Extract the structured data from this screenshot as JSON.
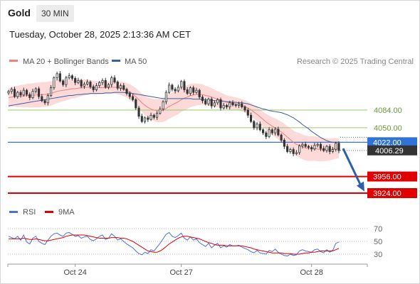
{
  "header": {
    "instrument": "Gold",
    "timeframe": "30 MIN",
    "timestamp": "Tuesday, October 28, 2025 2:13:36 AM CET"
  },
  "legend": {
    "ma20_label": "MA 20 + Bollinger Bands",
    "ma50_label": "MA 50",
    "copyright": "Research © 2025 Trading Central",
    "rsi_label": "RSI",
    "rsi_ma_label": "9MA"
  },
  "colors": {
    "ma20": "#f08080",
    "ma50": "#3a5fa0",
    "band_fill": "#fbd3d3",
    "candle": "#333333",
    "support": "#e00000",
    "current_level": "#2f73d8",
    "resistance_lines": "#9acb6a",
    "arrow": "#2c5fa8",
    "price_tag": "#333333",
    "rsi": "#4a6fd8",
    "rsi_ma": "#e00000"
  },
  "chart_data": [
    {
      "type": "candlestick",
      "panel": "price",
      "x_tick_labels": [
        "Oct 24",
        "Oct 27",
        "Oct 28"
      ],
      "current_price": 4006.29,
      "current_price_label": "4006.29",
      "levels": [
        {
          "value": 4084.0,
          "label": "4084.00",
          "style": "green-thin"
        },
        {
          "value": 4050.0,
          "label": "4050.00",
          "style": "green-thin"
        },
        {
          "value": 4022.0,
          "label": "4022.00",
          "style": "blue-pivot"
        },
        {
          "value": 3956.0,
          "label": "3956.00",
          "style": "red-support"
        },
        {
          "value": 3924.0,
          "label": "3924.00",
          "style": "red-support"
        }
      ],
      "forecast_arrow": {
        "from": 4010,
        "to": 3930,
        "direction": "down"
      },
      "close": [
        4120,
        4124,
        4110,
        4118,
        4113,
        4122,
        4114,
        4108,
        4120,
        4125,
        4110,
        4102,
        4098,
        4112,
        4127,
        4146,
        4154,
        4140,
        4133,
        4146,
        4150,
        4145,
        4137,
        4141,
        4130,
        4134,
        4138,
        4129,
        4123,
        4131,
        4137,
        4141,
        4128,
        4133,
        4146,
        4138,
        4126,
        4131,
        4124,
        4116,
        4110,
        4104,
        4088,
        4072,
        4062,
        4069,
        4066,
        4074,
        4070,
        4078,
        4086,
        4100,
        4118,
        4132,
        4124,
        4121,
        4128,
        4139,
        4123,
        4116,
        4127,
        4118,
        4122,
        4109,
        4102,
        4096,
        4105,
        4092,
        4098,
        4104,
        4088,
        4093,
        4090,
        4098,
        4094,
        4093,
        4096,
        4090,
        4084,
        4074,
        4062,
        4050,
        4057,
        4046,
        4040,
        4033,
        4046,
        4040,
        4047,
        4036,
        4026,
        4014,
        4004,
        4008,
        4000,
        4002,
        4015,
        4018,
        4014,
        4012,
        4009,
        4016,
        4018,
        4010,
        4006,
        4014,
        4004,
        4008,
        4020,
        4006
      ],
      "ma20": [
        4108,
        4109,
        4110,
        4110,
        4111,
        4111,
        4112,
        4112,
        4112,
        4113,
        4113,
        4114,
        4114,
        4115,
        4116,
        4118,
        4120,
        4121,
        4122,
        4123,
        4124,
        4125,
        4125,
        4126,
        4127,
        4127,
        4128,
        4128,
        4127,
        4127,
        4127,
        4127,
        4127,
        4127,
        4128,
        4128,
        4127,
        4126,
        4124,
        4122,
        4119,
        4115,
        4110,
        4104,
        4098,
        4093,
        4089,
        4086,
        4084,
        4083,
        4083,
        4084,
        4087,
        4091,
        4094,
        4097,
        4100,
        4104,
        4107,
        4109,
        4112,
        4113,
        4114,
        4114,
        4114,
        4112,
        4111,
        4109,
        4107,
        4105,
        4103,
        4101,
        4099,
        4098,
        4097,
        4096,
        4095,
        4093,
        4091,
        4088,
        4085,
        4080,
        4076,
        4071,
        4066,
        4061,
        4057,
        4053,
        4050,
        4046,
        4042,
        4037,
        4032,
        4027,
        4022,
        4018,
        4016,
        4013,
        4011,
        4010,
        4010,
        4010,
        4009,
        4008,
        4008,
        4008,
        4008,
        4009,
        4010,
        4010
      ],
      "ma50": [
        4092,
        4093,
        4094,
        4095,
        4096,
        4097,
        4098,
        4099,
        4100,
        4101,
        4102,
        4103,
        4104,
        4105,
        4106,
        4107,
        4108,
        4109,
        4110,
        4111,
        4112,
        4112,
        4113,
        4114,
        4114,
        4115,
        4115,
        4116,
        4116,
        4116,
        4116,
        4116,
        4117,
        4117,
        4117,
        4118,
        4118,
        4118,
        4118,
        4117,
        4117,
        4116,
        4115,
        4114,
        4113,
        4112,
        4111,
        4110,
        4109,
        4108,
        4107,
        4106,
        4106,
        4106,
        4106,
        4106,
        4106,
        4106,
        4106,
        4106,
        4106,
        4105,
        4105,
        4105,
        4104,
        4104,
        4103,
        4103,
        4102,
        4102,
        4101,
        4101,
        4100,
        4100,
        4099,
        4099,
        4098,
        4098,
        4097,
        4096,
        4094,
        4092,
        4090,
        4088,
        4086,
        4085,
        4083,
        4082,
        4081,
        4080,
        4079,
        4077,
        4075,
        4072,
        4069,
        4065,
        4061,
        4056,
        4052,
        4048,
        4043,
        4039,
        4035,
        4031,
        4028,
        4025,
        4023,
        4022,
        4022,
        4022
      ]
    },
    {
      "type": "line",
      "panel": "RSI",
      "ylim": [
        20,
        80
      ],
      "y_tick_labels": [
        "70",
        "50",
        "30"
      ],
      "series": [
        {
          "name": "RSI",
          "values": [
            58,
            56,
            54,
            58,
            52,
            60,
            49,
            46,
            55,
            58,
            50,
            47,
            45,
            52,
            58,
            62,
            63,
            60,
            58,
            63,
            64,
            61,
            58,
            59,
            55,
            57,
            58,
            53,
            51,
            54,
            58,
            60,
            53,
            55,
            62,
            58,
            52,
            54,
            50,
            46,
            43,
            40,
            35,
            31,
            29,
            33,
            31,
            37,
            35,
            41,
            47,
            54,
            61,
            64,
            58,
            56,
            59,
            63,
            55,
            52,
            57,
            52,
            54,
            48,
            45,
            42,
            47,
            40,
            44,
            47,
            40,
            43,
            41,
            45,
            43,
            43,
            44,
            41,
            39,
            37,
            34,
            32,
            36,
            32,
            31,
            30,
            36,
            34,
            38,
            33,
            30,
            28,
            27,
            30,
            28,
            29,
            35,
            37,
            35,
            34,
            33,
            37,
            38,
            34,
            32,
            37,
            33,
            36,
            47,
            49
          ]
        },
        {
          "name": "9MA",
          "values": [
            54,
            54,
            54,
            54,
            54,
            55,
            54,
            53,
            53,
            54,
            53,
            52,
            51,
            51,
            52,
            53,
            54,
            55,
            56,
            58,
            59,
            60,
            60,
            60,
            60,
            60,
            59,
            58,
            57,
            56,
            55,
            55,
            55,
            55,
            56,
            56,
            56,
            55,
            55,
            54,
            52,
            50,
            47,
            44,
            41,
            38,
            35,
            34,
            33,
            33,
            35,
            38,
            42,
            46,
            49,
            52,
            55,
            57,
            58,
            58,
            57,
            56,
            55,
            54,
            52,
            50,
            48,
            47,
            45,
            44,
            44,
            44,
            43,
            43,
            43,
            43,
            43,
            43,
            42,
            41,
            40,
            38,
            37,
            36,
            35,
            34,
            33,
            32,
            32,
            32,
            32,
            31,
            31,
            31,
            30,
            30,
            30,
            31,
            32,
            32,
            33,
            33,
            34,
            35,
            35,
            35,
            35,
            35,
            37,
            39
          ]
        }
      ]
    }
  ]
}
